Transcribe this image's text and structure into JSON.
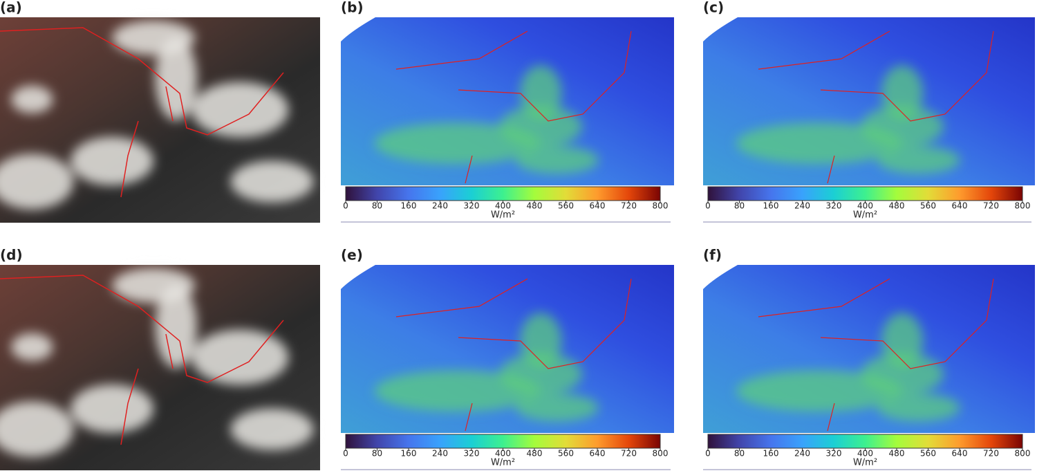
{
  "panels": [
    {
      "label": "(a)"
    },
    {
      "label": "(b)",
      "colorbar": {
        "label": "W/m²",
        "lim": [
          0,
          800
        ],
        "ticks": [
          0,
          80,
          160,
          240,
          320,
          400,
          480,
          560,
          640,
          720,
          800
        ]
      }
    },
    {
      "label": "(c)",
      "colorbar": {
        "label": "W/m²",
        "lim": [
          0,
          800
        ],
        "ticks": [
          0,
          80,
          160,
          240,
          320,
          400,
          480,
          560,
          640,
          720,
          800
        ]
      }
    },
    {
      "label": "(d)"
    },
    {
      "label": "(e)",
      "colorbar": {
        "label": "W/m²",
        "lim": [
          0,
          800
        ],
        "ticks": [
          0,
          80,
          160,
          240,
          320,
          400,
          480,
          560,
          640,
          720,
          800
        ]
      }
    },
    {
      "label": "(f)",
      "colorbar": {
        "label": "W/m²",
        "lim": [
          0,
          800
        ],
        "ticks": [
          0,
          80,
          160,
          240,
          320,
          400,
          480,
          560,
          640,
          720,
          800
        ]
      }
    }
  ]
}
